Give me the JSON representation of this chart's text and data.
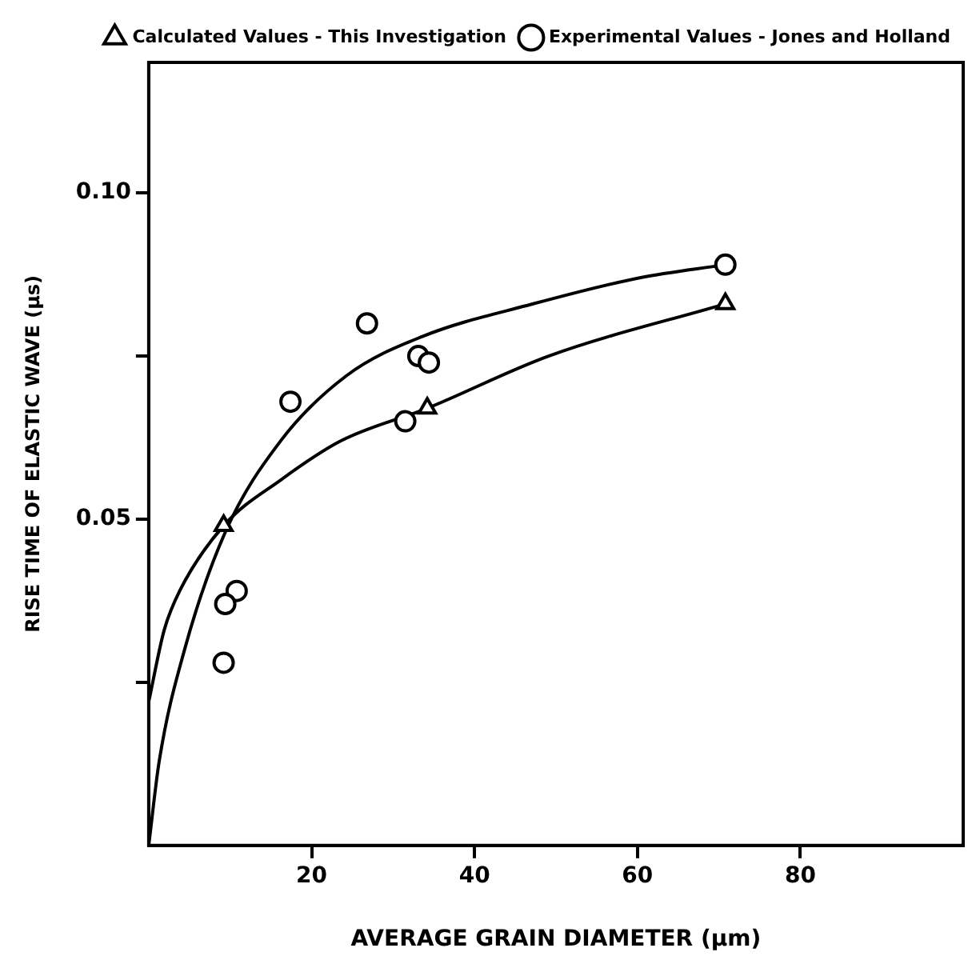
{
  "chart_data": {
    "type": "scatter",
    "xlabel": "AVERAGE GRAIN DIAMETER (μm)",
    "ylabel": "RISE TIME OF ELASTIC WAVE (μs)",
    "xlim": [
      0,
      100
    ],
    "xticks": [
      20,
      40,
      60,
      80
    ],
    "ylim": [
      0,
      0.12
    ],
    "yticks": [
      {
        "value": 0.025,
        "label": null
      },
      {
        "value": 0.05,
        "label": "0.05"
      },
      {
        "value": 0.075,
        "label": null
      },
      {
        "value": 0.1,
        "label": "0.10"
      }
    ],
    "grid": false,
    "legend": "top right",
    "series": [
      {
        "name": "Calculated Values - This Investigation",
        "marker": "triangle",
        "color": "#000000",
        "x": [
          9.2,
          34.2,
          70.8
        ],
        "values": [
          0.049,
          0.067,
          0.083
        ]
      },
      {
        "name": "Experimental Values - Jones and Holland",
        "marker": "circle",
        "color": "#000000",
        "x": [
          70.8,
          26.8,
          17.4,
          33.1,
          34.4,
          31.5,
          10.8,
          9.4,
          9.2
        ],
        "values": [
          0.089,
          0.08,
          0.068,
          0.075,
          0.074,
          0.065,
          0.039,
          0.037,
          0.028
        ]
      },
      {
        "type": "line",
        "marker": "none",
        "color": "#000000",
        "x": [
          0,
          1.9,
          3.8,
          9.2,
          16.2,
          23.6,
          34.2,
          49.1,
          70.8
        ],
        "values": [
          0.022,
          0.033,
          0.039,
          0.049,
          0.056,
          0.062,
          0.067,
          0.075,
          0.083
        ]
      },
      {
        "type": "line",
        "marker": "none",
        "color": "#000000",
        "x": [
          0,
          1.3,
          4.4,
          9.4,
          16.2,
          24.3,
          33.6,
          47.2,
          60.3,
          70.8
        ],
        "values": [
          0,
          0.013,
          0.03,
          0.048,
          0.062,
          0.072,
          0.078,
          0.083,
          0.087,
          0.089
        ]
      }
    ]
  }
}
